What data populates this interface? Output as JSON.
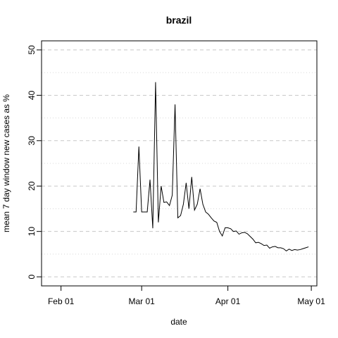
{
  "chart_data": {
    "type": "line",
    "title": "brazil",
    "xlabel": "date",
    "ylabel": "mean  7  day window new cases as %",
    "x": [
      "Feb 27",
      "Feb 28",
      "Feb 29",
      "Mar 01",
      "Mar 02",
      "Mar 03",
      "Mar 04",
      "Mar 05",
      "Mar 06",
      "Mar 07",
      "Mar 08",
      "Mar 09",
      "Mar 10",
      "Mar 11",
      "Mar 12",
      "Mar 13",
      "Mar 14",
      "Mar 15",
      "Mar 16",
      "Mar 17",
      "Mar 18",
      "Mar 19",
      "Mar 20",
      "Mar 21",
      "Mar 22",
      "Mar 23",
      "Mar 24",
      "Mar 25",
      "Mar 26",
      "Mar 27",
      "Mar 28",
      "Mar 29",
      "Mar 30",
      "Mar 31",
      "Apr 01",
      "Apr 02",
      "Apr 03",
      "Apr 04",
      "Apr 05",
      "Apr 06",
      "Apr 07",
      "Apr 08",
      "Apr 09",
      "Apr 10",
      "Apr 11",
      "Apr 12",
      "Apr 13",
      "Apr 14",
      "Apr 15",
      "Apr 16",
      "Apr 17",
      "Apr 18",
      "Apr 19",
      "Apr 20",
      "Apr 21",
      "Apr 22",
      "Apr 23",
      "Apr 24",
      "Apr 25",
      "Apr 26",
      "Apr 27",
      "Apr 28",
      "Apr 29",
      "Apr 30"
    ],
    "values": [
      14.3,
      14.3,
      28.7,
      14.3,
      14.3,
      14.3,
      21.4,
      10.7,
      42.9,
      12,
      20,
      16.4,
      16.5,
      15.7,
      18,
      38,
      13,
      13.5,
      16,
      20.7,
      15,
      22,
      14.7,
      16,
      19.4,
      16,
      14.3,
      13.8,
      13,
      12.3,
      12,
      10,
      9,
      10.8,
      10.8,
      10.6,
      10,
      10.1,
      9.4,
      9.7,
      9.8,
      9.5,
      8.9,
      8.3,
      7.5,
      7.6,
      7.3,
      6.9,
      7,
      6.3,
      6.6,
      6.7,
      6.4,
      6.4,
      6.2,
      5.7,
      6.1,
      5.8,
      6,
      5.9,
      6,
      6.2,
      6.4,
      6.6
    ],
    "color": "#000000",
    "xlim": [
      "Jan 25",
      "May 03"
    ],
    "xticks": [
      "Feb 01",
      "Mar 01",
      "Apr 01",
      "May 01"
    ],
    "ylim": [
      -2,
      52
    ],
    "yticks": [
      0,
      10,
      20,
      30,
      40,
      50
    ],
    "yminor": [
      5,
      15,
      25,
      35,
      45
    ],
    "grid": true
  }
}
